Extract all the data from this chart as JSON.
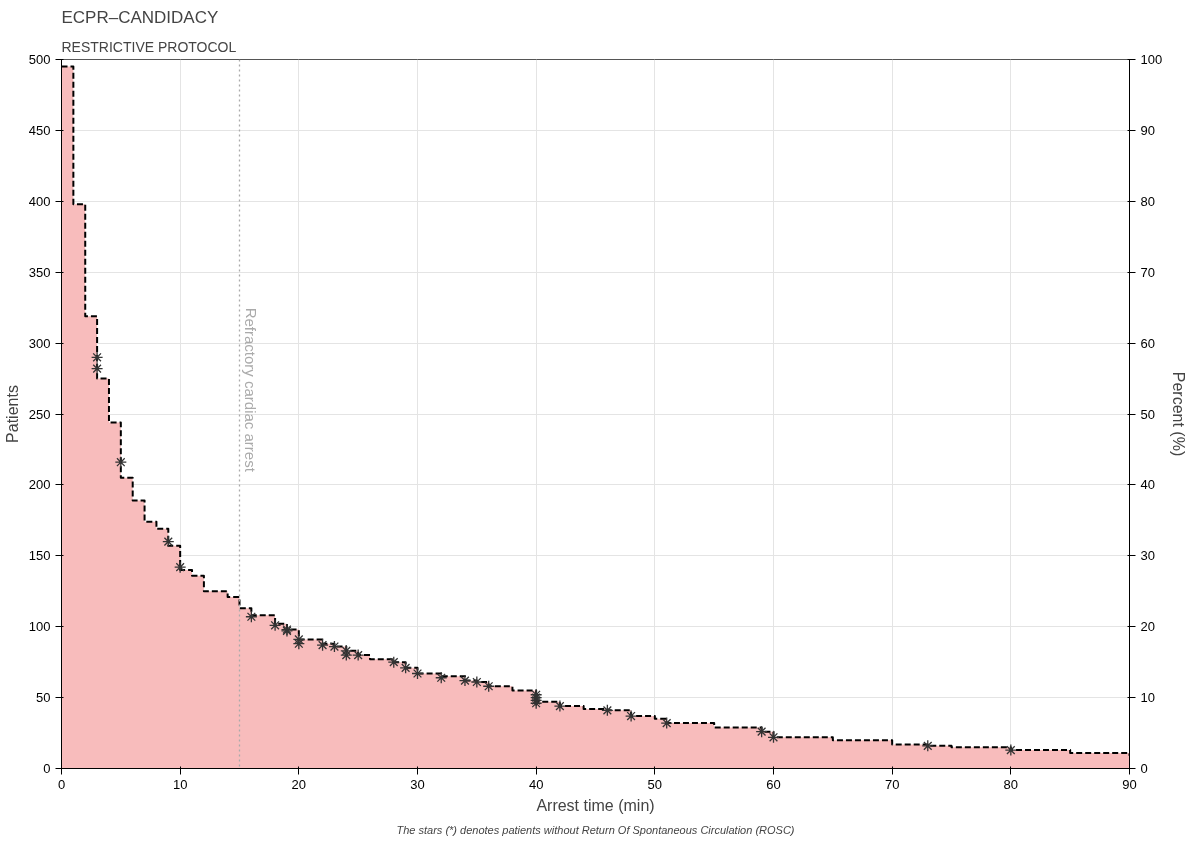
{
  "chart_data": {
    "type": "step",
    "title": "ECPR–CANDIDACY",
    "subtitle": "RESTRICTIVE PROTOCOL",
    "xlabel": "Arrest time (min)",
    "ylabel": "Patients",
    "y2label": "Percent (%)",
    "x": [
      0,
      1,
      2,
      3,
      4,
      5,
      6,
      7,
      8,
      9,
      10,
      11,
      12,
      14,
      15,
      16,
      18,
      19,
      20,
      22,
      23,
      24,
      25,
      26,
      28,
      29,
      30,
      32,
      34,
      35,
      36,
      38,
      40,
      42,
      44,
      46,
      48,
      50,
      51,
      55,
      59,
      60,
      65,
      70,
      73,
      75,
      80,
      85,
      90
    ],
    "series": [
      {
        "type": "area",
        "color": "#f8bcbc",
        "values": [
          495,
          398,
          319,
          275,
          244,
          205,
          189,
          174,
          169,
          157,
          140,
          136,
          125,
          121,
          113,
          108,
          102,
          98,
          91,
          88,
          86,
          83,
          80,
          77,
          75,
          71,
          67,
          65,
          62,
          61,
          58,
          55,
          47,
          44,
          42,
          41,
          37,
          35,
          32,
          29,
          26,
          22,
          20,
          17,
          16,
          15,
          13,
          11,
          9
        ]
      },
      {
        "type": "step",
        "color": "#000000",
        "line_style": "dashed",
        "values": [
          495,
          398,
          319,
          275,
          244,
          205,
          189,
          174,
          169,
          157,
          140,
          136,
          125,
          121,
          113,
          108,
          102,
          98,
          91,
          88,
          86,
          83,
          80,
          77,
          75,
          71,
          67,
          65,
          62,
          61,
          58,
          55,
          47,
          44,
          42,
          41,
          37,
          35,
          32,
          29,
          26,
          22,
          20,
          17,
          16,
          15,
          13,
          11,
          9
        ]
      },
      {
        "type": "scatter",
        "color": "#333333",
        "marker": "cross",
        "x": [
          3,
          3,
          5,
          9,
          10,
          16,
          18,
          19,
          19,
          20,
          20,
          22,
          23,
          24,
          24,
          25,
          28,
          29,
          30,
          32,
          34,
          35,
          36,
          40,
          40,
          40,
          40,
          42,
          46,
          48,
          51,
          59,
          60,
          73,
          80
        ],
        "values": [
          290,
          282,
          216,
          160,
          142,
          107,
          101,
          98,
          97,
          91,
          88,
          87,
          86,
          83,
          80,
          80,
          75,
          71,
          67,
          64,
          62,
          61,
          58,
          52,
          50,
          48,
          46,
          44,
          41,
          37,
          32,
          26,
          22,
          16,
          13
        ]
      }
    ],
    "xlim": [
      0,
      90
    ],
    "xticks": [
      0,
      10,
      20,
      30,
      40,
      50,
      60,
      70,
      80,
      90
    ],
    "ylim": [
      0,
      500
    ],
    "yticks": [
      0,
      50,
      100,
      150,
      200,
      250,
      300,
      350,
      400,
      450,
      500
    ],
    "y2lim": [
      0,
      100
    ],
    "y2ticks": [
      0,
      10,
      20,
      30,
      40,
      50,
      60,
      70,
      80,
      90,
      100
    ],
    "ref_lines": [
      {
        "axis": "x",
        "value": 15,
        "label": "Refractory cardiac arrest",
        "color": "#aaaaaa",
        "line_style": "dotted"
      }
    ],
    "annotations": [
      "The stars (*) denotes patients without Return Of Spontaneous Circulation (ROSC)"
    ],
    "grid": true
  }
}
